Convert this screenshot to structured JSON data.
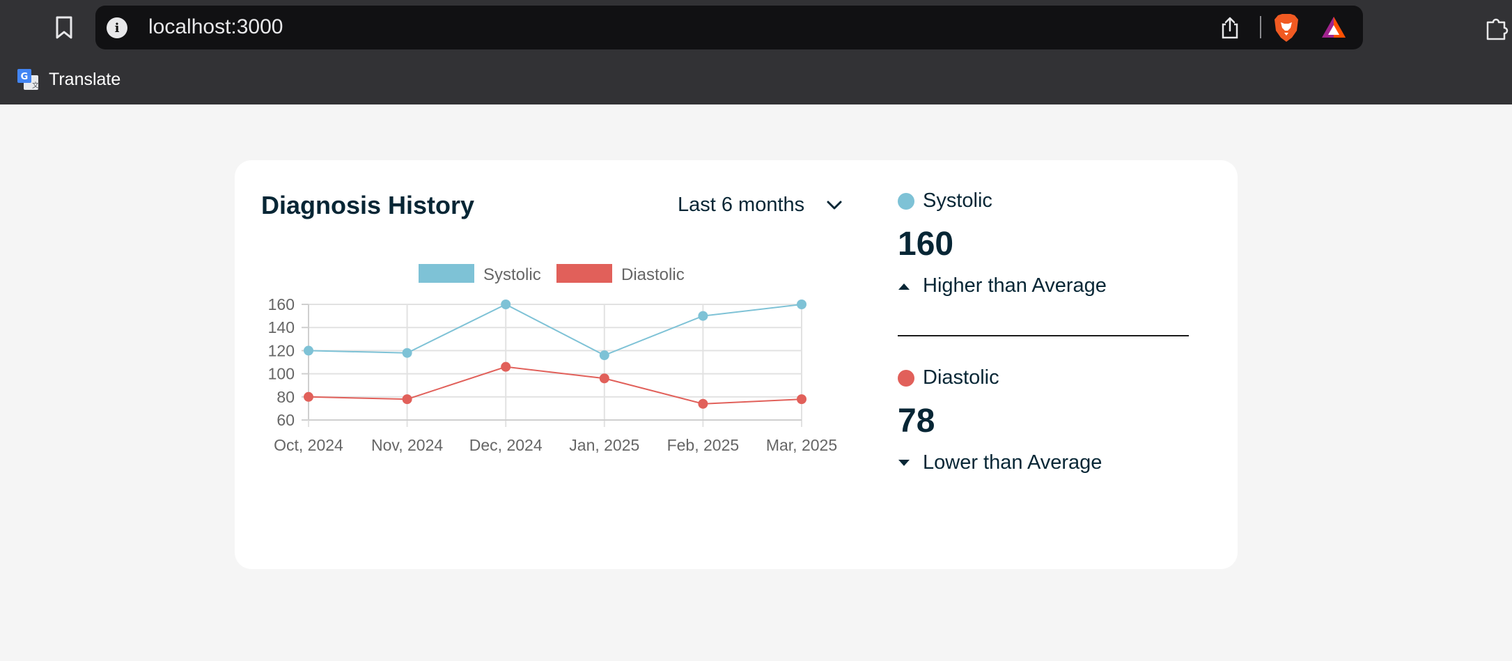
{
  "browser": {
    "url": "localhost:3000",
    "bookmarks_bar": [
      {
        "label": "Translate"
      }
    ]
  },
  "card": {
    "title": "Diagnosis History",
    "range_select": {
      "selected": "Last 6 months"
    }
  },
  "chart_data": {
    "type": "line",
    "categories": [
      "Oct, 2024",
      "Nov, 2024",
      "Dec, 2024",
      "Jan, 2025",
      "Feb, 2025",
      "Mar, 2025"
    ],
    "series": [
      {
        "name": "Systolic",
        "color": "#7ec2d6",
        "values": [
          120,
          118,
          160,
          116,
          150,
          160
        ]
      },
      {
        "name": "Diastolic",
        "color": "#e1605a",
        "values": [
          80,
          78,
          106,
          96,
          74,
          78
        ]
      }
    ],
    "yticks": [
      60,
      80,
      100,
      120,
      140,
      160
    ],
    "ylim": [
      60,
      160
    ],
    "grid": true,
    "legend": "top-center"
  },
  "stats": [
    {
      "label": "Systolic",
      "color": "#7ec2d6",
      "value": "160",
      "trend": "Higher than Average",
      "direction": "up"
    },
    {
      "label": "Diastolic",
      "color": "#e1605a",
      "value": "78",
      "trend": "Lower than Average",
      "direction": "down"
    }
  ]
}
